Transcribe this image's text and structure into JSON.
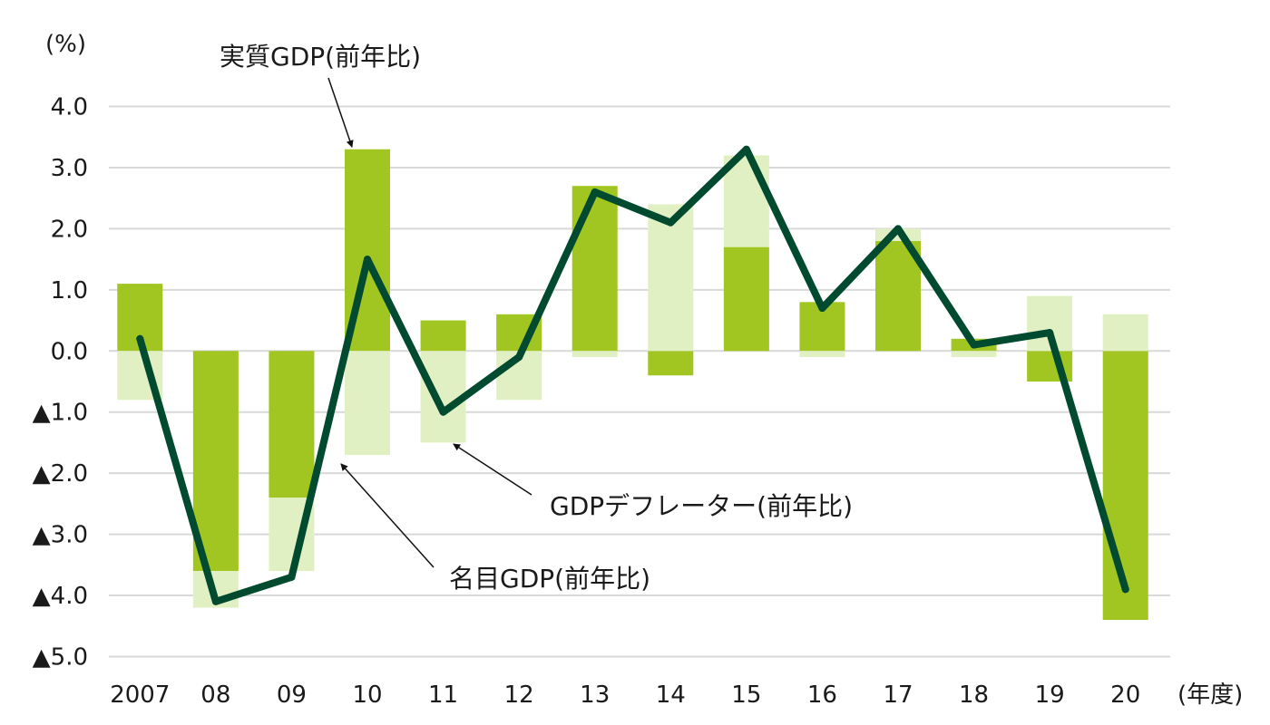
{
  "chart_data": {
    "type": "bar",
    "unit_label": "(%)",
    "x_unit_label": "(年度)",
    "categories": [
      "2007",
      "08",
      "09",
      "10",
      "11",
      "12",
      "13",
      "14",
      "15",
      "16",
      "17",
      "18",
      "19",
      "20"
    ],
    "ylim": [
      -5.0,
      4.0
    ],
    "yticks": [
      4.0,
      3.0,
      2.0,
      1.0,
      0.0,
      -1.0,
      -2.0,
      -3.0,
      -4.0,
      -5.0
    ],
    "ytick_labels": [
      "4.0",
      "3.0",
      "2.0",
      "1.0",
      "0.0",
      "▲1.0",
      "▲2.0",
      "▲3.0",
      "▲4.0",
      "▲5.0"
    ],
    "grid": true,
    "series": [
      {
        "name": "実質GDP(前年比)",
        "kind": "bar",
        "color": "#a1c621",
        "values": [
          1.1,
          -3.6,
          -2.4,
          3.3,
          0.5,
          0.6,
          2.7,
          -0.4,
          1.7,
          0.8,
          1.8,
          0.2,
          -0.5,
          -4.4
        ]
      },
      {
        "name": "GDPデフレーター(前年比)",
        "kind": "bar",
        "color": "#e1f0c3",
        "values": [
          -0.8,
          -0.6,
          -1.2,
          -1.7,
          -1.5,
          -0.8,
          -0.1,
          2.4,
          1.5,
          -0.1,
          0.2,
          -0.1,
          0.9,
          0.6
        ]
      },
      {
        "name": "名目GDP(前年比)",
        "kind": "line",
        "color": "#004a30",
        "values": [
          0.2,
          -4.1,
          -3.7,
          1.5,
          -1.0,
          -0.1,
          2.6,
          2.1,
          3.3,
          0.7,
          2.0,
          0.1,
          0.3,
          -3.9
        ]
      }
    ]
  }
}
